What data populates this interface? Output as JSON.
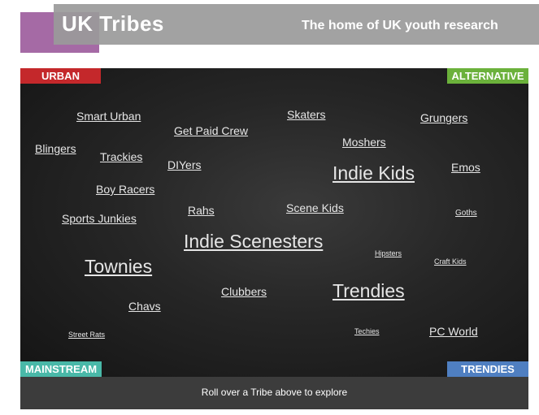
{
  "header": {
    "logo": "UK Tribes",
    "tagline": "The home of UK youth research"
  },
  "quadrants": {
    "top_left": "URBAN",
    "top_right": "ALTERNATIVE",
    "bottom_left": "MAINSTREAM",
    "bottom_right": "TRENDIES"
  },
  "tribes": [
    "Smart Urban",
    "Skaters",
    "Grungers",
    "Get Paid Crew",
    "Moshers",
    "Blingers",
    "Trackies",
    "DIYers",
    "Indie Kids",
    "Emos",
    "Boy Racers",
    "Rahs",
    "Scene Kids",
    "Sports Junkies",
    "Goths",
    "Indie Scenesters",
    "Hipsters",
    "Craft Kids",
    "Townies",
    "Clubbers",
    "Trendies",
    "Chavs",
    "Street Rats",
    "Techies",
    "PC World"
  ],
  "footer": {
    "instruction": "Roll over a Tribe above to explore"
  },
  "colors": {
    "urban": "#c4282b",
    "alternative": "#6bb13b",
    "mainstream": "#49b8a8",
    "trendies": "#4f7fc1",
    "brand_purple": "#9b5a9b"
  }
}
